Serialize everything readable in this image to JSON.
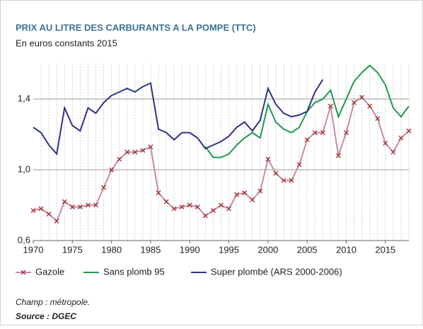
{
  "chart_data": {
    "type": "line",
    "title": "PRIX AU LITRE DES CARBURANTS A LA POMPE (TTC)",
    "subtitle": "En euros constants 2015",
    "xlim": [
      1970,
      2018
    ],
    "xticks": [
      1970,
      1975,
      1980,
      1985,
      1990,
      1995,
      2000,
      2005,
      2010,
      2015
    ],
    "ylim": [
      0.6,
      1.6
    ],
    "yticks": [
      {
        "value": 0.6,
        "label": "0,6"
      },
      {
        "value": 1.0,
        "label": "1,0"
      },
      {
        "value": 1.4,
        "label": "1,4"
      }
    ],
    "grid": true,
    "series": [
      {
        "name": "Gazole",
        "color": "#c48aa9",
        "marker_color": "#a3332e",
        "x": [
          1970,
          1971,
          1972,
          1973,
          1974,
          1975,
          1976,
          1977,
          1978,
          1979,
          1980,
          1981,
          1982,
          1983,
          1984,
          1985,
          1986,
          1987,
          1988,
          1989,
          1990,
          1991,
          1992,
          1993,
          1994,
          1995,
          1996,
          1997,
          1998,
          1999,
          2000,
          2001,
          2002,
          2003,
          2004,
          2005,
          2006,
          2007,
          2008,
          2009,
          2010,
          2011,
          2012,
          2013,
          2014,
          2015,
          2016,
          2017,
          2018
        ],
        "values": [
          0.77,
          0.78,
          0.75,
          0.71,
          0.82,
          0.79,
          0.79,
          0.8,
          0.8,
          0.9,
          1.0,
          1.06,
          1.1,
          1.1,
          1.11,
          1.13,
          0.87,
          0.82,
          0.78,
          0.79,
          0.8,
          0.79,
          0.74,
          0.77,
          0.8,
          0.78,
          0.86,
          0.87,
          0.83,
          0.88,
          1.06,
          0.98,
          0.94,
          0.94,
          1.03,
          1.17,
          1.21,
          1.21,
          1.36,
          1.08,
          1.21,
          1.38,
          1.41,
          1.36,
          1.29,
          1.15,
          1.1,
          1.18,
          1.22
        ]
      },
      {
        "name": "Sans plomb 95",
        "color": "#1f9a4f",
        "x": [
          1992,
          1993,
          1994,
          1995,
          1996,
          1997,
          1998,
          1999,
          2000,
          2001,
          2002,
          2003,
          2004,
          2005,
          2006,
          2007,
          2008,
          2009,
          2010,
          2011,
          2012,
          2013,
          2014,
          2015,
          2016,
          2017,
          2018
        ],
        "values": [
          1.13,
          1.07,
          1.07,
          1.09,
          1.14,
          1.18,
          1.21,
          1.18,
          1.37,
          1.27,
          1.23,
          1.21,
          1.24,
          1.33,
          1.38,
          1.4,
          1.45,
          1.3,
          1.4,
          1.5,
          1.55,
          1.59,
          1.55,
          1.48,
          1.35,
          1.3,
          1.36
        ]
      },
      {
        "name": "Super plombé (ARS 2000-2006)",
        "color": "#2e3482",
        "x": [
          1970,
          1971,
          1972,
          1973,
          1974,
          1975,
          1976,
          1977,
          1978,
          1979,
          1980,
          1981,
          1982,
          1983,
          1984,
          1985,
          1986,
          1987,
          1988,
          1989,
          1990,
          1991,
          1992,
          1993,
          1994,
          1995,
          1996,
          1997,
          1998,
          1999,
          2000,
          2001,
          2002,
          2003,
          2004,
          2005,
          2006,
          2007
        ],
        "values": [
          1.24,
          1.21,
          1.14,
          1.09,
          1.35,
          1.25,
          1.22,
          1.35,
          1.32,
          1.38,
          1.42,
          1.44,
          1.46,
          1.44,
          1.47,
          1.49,
          1.23,
          1.21,
          1.17,
          1.21,
          1.21,
          1.18,
          1.12,
          1.14,
          1.16,
          1.19,
          1.24,
          1.27,
          1.22,
          1.28,
          1.46,
          1.37,
          1.32,
          1.3,
          1.31,
          1.33,
          1.44,
          1.51
        ]
      }
    ],
    "notes": [
      "Champ : métropole.",
      "Source : DGEC"
    ]
  }
}
